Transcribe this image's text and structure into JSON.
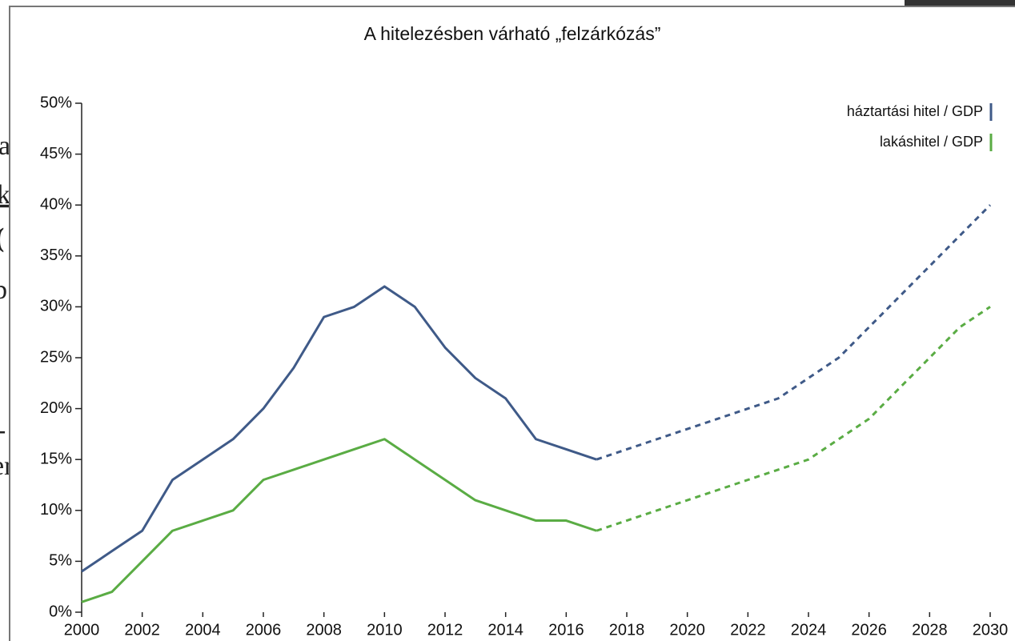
{
  "background_text": [
    "a",
    "k",
    "(",
    "b",
    "-",
    "er"
  ],
  "chart_data": {
    "type": "line",
    "title": "A hitelezésben várható „felzárkózás”",
    "x": [
      2000,
      2001,
      2002,
      2003,
      2004,
      2005,
      2006,
      2007,
      2008,
      2009,
      2010,
      2011,
      2012,
      2013,
      2014,
      2015,
      2016,
      2017,
      2018,
      2019,
      2020,
      2021,
      2022,
      2023,
      2024,
      2025,
      2026,
      2027,
      2028,
      2029,
      2030
    ],
    "series": [
      {
        "name": "háztartási hitel / GDP",
        "color": "#3f5a88",
        "values": [
          4,
          6,
          8,
          13,
          15,
          17,
          20,
          24,
          29,
          30,
          32,
          30,
          26,
          23,
          21,
          17,
          16,
          15,
          16,
          17,
          18,
          19,
          20,
          21,
          23,
          25,
          28,
          31,
          34,
          37,
          40
        ]
      },
      {
        "name": "lakáshitel / GDP",
        "color": "#5aac44",
        "values": [
          1,
          2,
          5,
          8,
          9,
          10,
          13,
          14,
          15,
          16,
          17,
          15,
          13,
          11,
          10,
          9,
          9,
          8,
          9,
          10,
          11,
          12,
          13,
          14,
          15,
          17,
          19,
          22,
          25,
          28,
          30
        ]
      }
    ],
    "dashed_from_x": 2017,
    "xlim": [
      2000,
      2030
    ],
    "xticks": [
      2000,
      2002,
      2004,
      2006,
      2008,
      2010,
      2012,
      2014,
      2016,
      2018,
      2020,
      2022,
      2024,
      2026,
      2028,
      2030
    ],
    "ylim": [
      0,
      50
    ],
    "yticks": [
      {
        "value": 0,
        "label": "0%"
      },
      {
        "value": 5,
        "label": "5%"
      },
      {
        "value": 10,
        "label": "10%"
      },
      {
        "value": 15,
        "label": "15%"
      },
      {
        "value": 20,
        "label": "20%"
      },
      {
        "value": 25,
        "label": "25%"
      },
      {
        "value": 30,
        "label": "30%"
      },
      {
        "value": 35,
        "label": "35%"
      },
      {
        "value": 40,
        "label": "40%"
      },
      {
        "value": 45,
        "label": "45%"
      },
      {
        "value": 50,
        "label": "50%"
      }
    ],
    "legend": "top-right"
  }
}
